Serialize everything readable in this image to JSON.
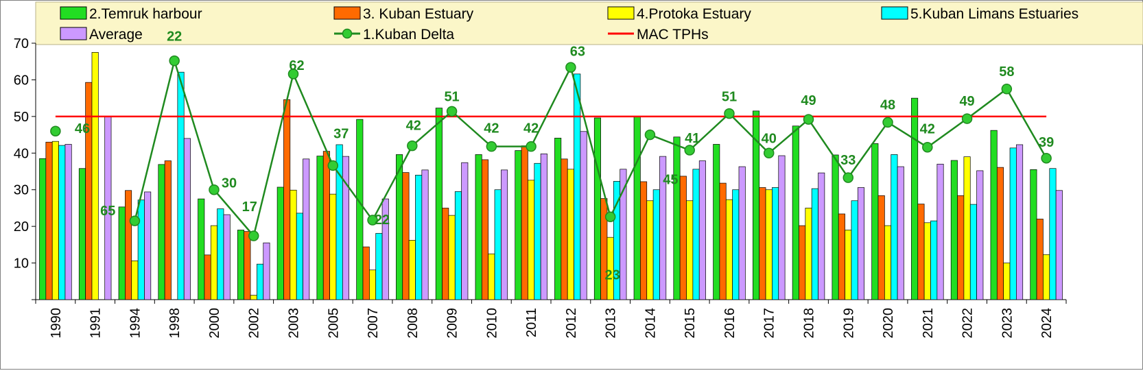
{
  "chart_data": {
    "type": "bar",
    "categories": [
      "1990",
      "1991",
      "1994",
      "1998",
      "2000",
      "2002",
      "2003",
      "2005",
      "2007",
      "2008",
      "2009",
      "2010",
      "2011",
      "2012",
      "2013",
      "2014",
      "2015",
      "2016",
      "2017",
      "2018",
      "2019",
      "2020",
      "2021",
      "2022",
      "2023",
      "2024"
    ],
    "ylim": [
      0,
      70
    ],
    "yticks": [
      10,
      20,
      30,
      40,
      50,
      60,
      70
    ],
    "grid": false,
    "legend_position": "top",
    "series": [
      {
        "name": "2.Temruk harbour",
        "kind": "bar",
        "color": "#22dd22",
        "values": [
          38.5,
          35.8,
          25.3,
          36.9,
          27.5,
          19,
          30.7,
          39.2,
          49.2,
          39.6,
          52.3,
          39.6,
          40.7,
          44.1,
          49.6,
          50,
          44.4,
          42.4,
          51.5,
          47.4,
          39.5,
          42.6,
          55,
          38,
          46.2,
          35.5
        ]
      },
      {
        "name": "3. Kuban Estuary",
        "kind": "bar",
        "color": "#ff6a00",
        "values": [
          43,
          59.3,
          29.8,
          37.9,
          12.2,
          18.6,
          54.6,
          40.5,
          14.4,
          34.7,
          25,
          38.2,
          42,
          38.4,
          27.6,
          32.2,
          33.7,
          31.8,
          30.6,
          20.2,
          23.4,
          28.4,
          26.1,
          28.4,
          36.1,
          22
        ]
      },
      {
        "name": "4.Protoka Estuary",
        "kind": "bar",
        "color": "#ffff00",
        "values": [
          43.2,
          67.5,
          10.6,
          0,
          20.2,
          1.2,
          29.9,
          28.8,
          8.1,
          16.2,
          23,
          12.5,
          32.6,
          35.6,
          17,
          27,
          27,
          27.3,
          30,
          25,
          19,
          20.2,
          21,
          39,
          10,
          12.3
        ]
      },
      {
        "name": "5.Kuban Limans Estuaries",
        "kind": "bar",
        "color": "#00ffff",
        "values": [
          42.1,
          0,
          27.2,
          62.1,
          24.8,
          9.7,
          23.6,
          42.3,
          18.1,
          34,
          29.5,
          30,
          37.2,
          61.6,
          32.3,
          30,
          35.6,
          30,
          30.6,
          30.3,
          27,
          39.6,
          21.5,
          26,
          41.4,
          35.8
        ]
      },
      {
        "name": "Average",
        "kind": "bar",
        "color": "#cc99ff",
        "values": [
          42.4,
          50,
          29.4,
          44,
          23.2,
          15.5,
          38.4,
          39.1,
          27.5,
          35.4,
          37.4,
          35.4,
          39.8,
          45.9,
          35.6,
          39.1,
          37.9,
          36.3,
          39.3,
          34.6,
          30.6,
          36.3,
          37,
          35.2,
          42.3,
          29.8
        ]
      },
      {
        "name": "1.Kuban Delta",
        "kind": "line",
        "color": "#1f8a1f",
        "marker_color": "#33cc33",
        "values": [
          46,
          0,
          21.5,
          65.2,
          30,
          17.4,
          61.6,
          36.6,
          21.7,
          42,
          51.4,
          41.8,
          41.8,
          63.4,
          22.6,
          45,
          40.8,
          50.8,
          40,
          49.2,
          33.3,
          48.4,
          41.6,
          49.4,
          57.5,
          38.6
        ]
      },
      {
        "name": "MAC TPHs",
        "kind": "hline",
        "color": "#ff0000",
        "value": 50
      }
    ],
    "data_labels": [
      "46",
      "65",
      "22",
      "30",
      "17",
      "62",
      "37",
      "22",
      "42",
      "51",
      "42",
      "42",
      "63",
      "23",
      "45",
      "41",
      "51",
      "40",
      "49",
      "33",
      "48",
      "42",
      "49",
      "58",
      "39"
    ]
  }
}
